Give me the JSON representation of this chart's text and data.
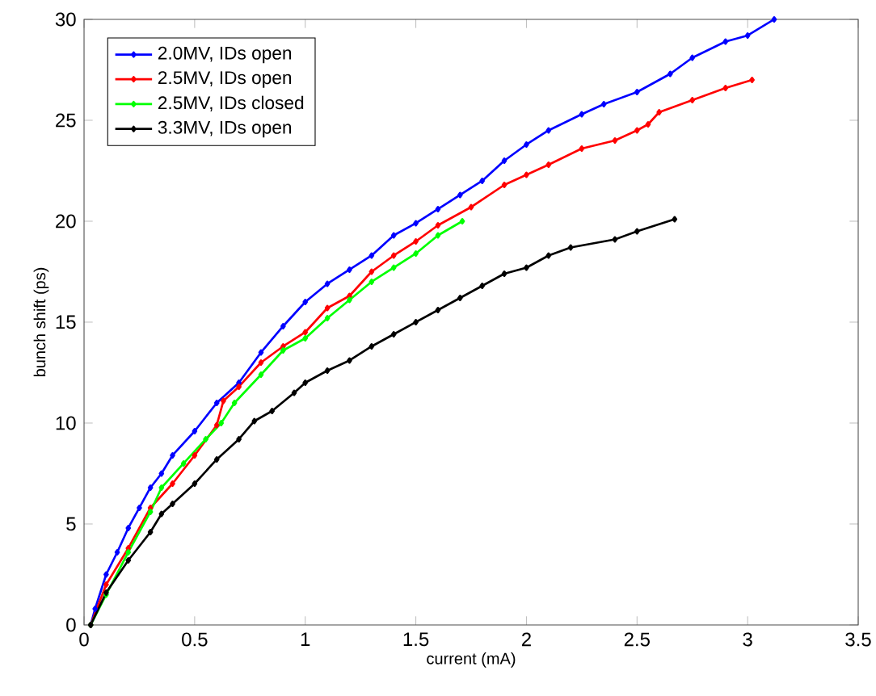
{
  "chart_data": {
    "type": "line",
    "xlabel": "current (mA)",
    "ylabel": "bunch shift (ps)",
    "xlim": [
      0,
      3.5
    ],
    "ylim": [
      0,
      30
    ],
    "xticks": [
      0,
      0.5,
      1,
      1.5,
      2,
      2.5,
      3,
      3.5
    ],
    "yticks": [
      0,
      5,
      10,
      15,
      20,
      25,
      30
    ],
    "legend": "top left",
    "marker": "diamond",
    "line_style": "solid",
    "series": [
      {
        "name": "2.0MV, IDs open",
        "color": "#0000ff",
        "x": [
          0.03,
          0.05,
          0.1,
          0.15,
          0.2,
          0.25,
          0.3,
          0.35,
          0.4,
          0.5,
          0.6,
          0.7,
          0.8,
          0.9,
          1.0,
          1.1,
          1.2,
          1.3,
          1.4,
          1.5,
          1.6,
          1.7,
          1.8,
          1.9,
          2.0,
          2.1,
          2.25,
          2.35,
          2.5,
          2.65,
          2.75,
          2.9,
          3.0,
          3.12
        ],
        "values": [
          0,
          0.8,
          2.5,
          3.6,
          4.8,
          5.8,
          6.8,
          7.5,
          8.4,
          9.6,
          11,
          12,
          13.5,
          14.8,
          16,
          16.9,
          17.6,
          18.3,
          19.3,
          19.9,
          20.6,
          21.3,
          22,
          23,
          23.8,
          24.5,
          25.3,
          25.8,
          26.4,
          27.3,
          28.1,
          28.9,
          29.2,
          30
        ]
      },
      {
        "name": "2.5MV, IDs open",
        "color": "#ff0000",
        "x": [
          0.03,
          0.1,
          0.2,
          0.3,
          0.4,
          0.5,
          0.6,
          0.63,
          0.7,
          0.8,
          0.9,
          1.0,
          1.1,
          1.2,
          1.3,
          1.4,
          1.5,
          1.6,
          1.75,
          1.9,
          2.0,
          2.1,
          2.25,
          2.4,
          2.5,
          2.55,
          2.6,
          2.75,
          2.9,
          3.02
        ],
        "values": [
          0,
          2,
          3.8,
          5.8,
          7,
          8.4,
          9.9,
          11.1,
          11.8,
          13,
          13.8,
          14.5,
          15.7,
          16.3,
          17.5,
          18.3,
          19,
          19.8,
          20.7,
          21.8,
          22.3,
          22.8,
          23.6,
          24,
          24.5,
          24.8,
          25.4,
          26,
          26.6,
          27
        ]
      },
      {
        "name": "2.5MV, IDs closed",
        "color": "#00ff00",
        "x": [
          0.03,
          0.1,
          0.2,
          0.3,
          0.35,
          0.45,
          0.55,
          0.62,
          0.68,
          0.8,
          0.9,
          1.0,
          1.1,
          1.2,
          1.3,
          1.4,
          1.5,
          1.6,
          1.71
        ],
        "values": [
          0,
          1.5,
          3.6,
          5.6,
          6.8,
          8,
          9.2,
          10,
          11,
          12.4,
          13.6,
          14.2,
          15.2,
          16.1,
          17,
          17.7,
          18.4,
          19.3,
          20
        ]
      },
      {
        "name": "3.3MV, IDs open",
        "color": "#000000",
        "x": [
          0.03,
          0.1,
          0.2,
          0.3,
          0.35,
          0.4,
          0.5,
          0.6,
          0.7,
          0.77,
          0.85,
          0.95,
          1.0,
          1.1,
          1.2,
          1.3,
          1.4,
          1.5,
          1.6,
          1.7,
          1.8,
          1.9,
          2.0,
          2.1,
          2.2,
          2.4,
          2.5,
          2.67
        ],
        "values": [
          0,
          1.6,
          3.2,
          4.6,
          5.5,
          6,
          7,
          8.2,
          9.2,
          10.1,
          10.6,
          11.5,
          12,
          12.6,
          13.1,
          13.8,
          14.4,
          15,
          15.6,
          16.2,
          16.8,
          17.4,
          17.7,
          18.3,
          18.7,
          19.1,
          19.5,
          20.1
        ]
      }
    ]
  }
}
